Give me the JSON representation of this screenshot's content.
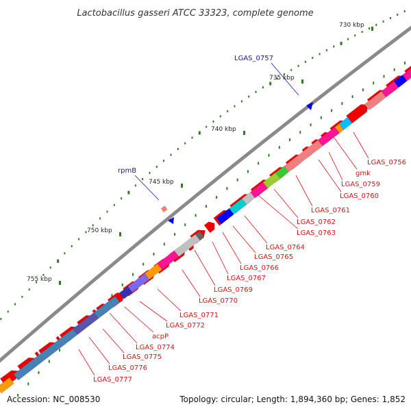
{
  "title": "Lactobacillus gasseri ATCC 33323, complete genome",
  "footer": {
    "accession": "Accession: NC_008530",
    "summary": "Topology: circular; Length: 1,894,360 bp; Genes: 1,852"
  },
  "ticks": [
    {
      "label": "730 kbp"
    },
    {
      "label": "735 kbp"
    },
    {
      "label": "740 kbp"
    },
    {
      "label": "745 kbp"
    },
    {
      "label": "750 kbp"
    },
    {
      "label": "755 kbp"
    }
  ],
  "colors": {
    "backbone": "#8a8a8a",
    "gene": "#ee0000",
    "gene_label_red": "#dd1111",
    "gene_label_blue": "#1111cc",
    "tick": "#2e7d1e"
  },
  "labels": {
    "top": [
      {
        "text": "LGAS_0757",
        "color": "blue"
      },
      {
        "text": "rpmB",
        "color": "blue"
      }
    ],
    "bottom": [
      {
        "text": "LGAS_0756"
      },
      {
        "text": "gmk"
      },
      {
        "text": "LGAS_0759"
      },
      {
        "text": "LGAS_0760"
      },
      {
        "text": "LGAS_0761"
      },
      {
        "text": "LGAS_0762"
      },
      {
        "text": "LGAS_0763"
      },
      {
        "text": "LGAS_0764"
      },
      {
        "text": "LGAS_0765"
      },
      {
        "text": "LGAS_0766"
      },
      {
        "text": "LGAS_0767"
      },
      {
        "text": "LGAS_0769"
      },
      {
        "text": "LGAS_0770"
      },
      {
        "text": "LGAS_0771"
      },
      {
        "text": "LGAS_0772"
      },
      {
        "text": "acpP"
      },
      {
        "text": "LGAS_0774"
      },
      {
        "text": "LGAS_0775"
      },
      {
        "text": "LGAS_0776"
      },
      {
        "text": "LGAS_0777"
      }
    ]
  }
}
